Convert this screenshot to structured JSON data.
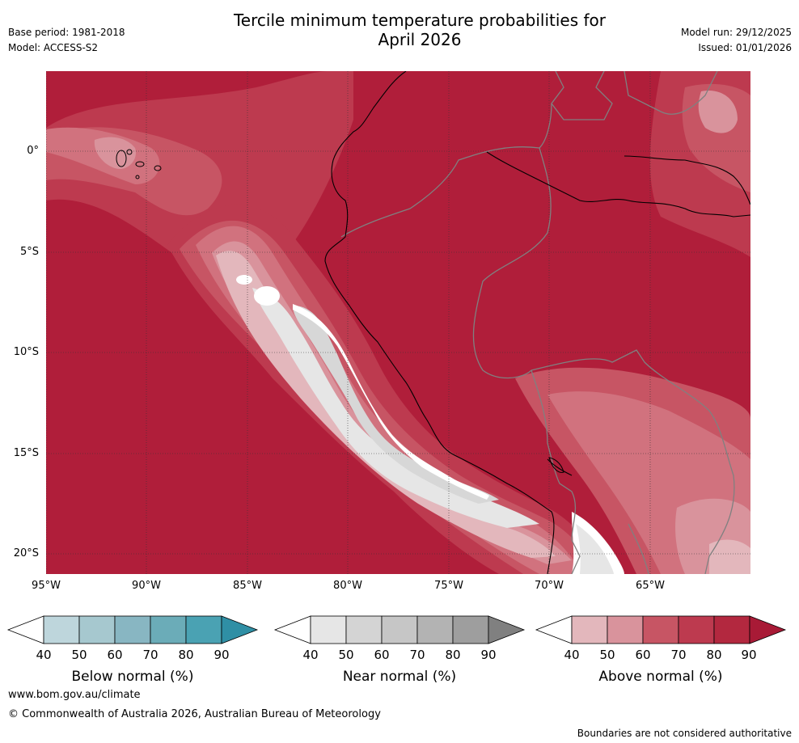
{
  "header": {
    "title_line1": "Tercile minimum temperature probabilities for",
    "title_line2": "April 2026",
    "base_period": "Base period: 1981-2018",
    "model": "Model: ACCESS-S2",
    "model_run": "Model run: 29/12/2025",
    "issued": "Issued: 01/01/2026"
  },
  "map": {
    "lat_labels": [
      "0°",
      "5°S",
      "10°S",
      "15°S",
      "20°S"
    ],
    "lon_labels": [
      "95°W",
      "90°W",
      "85°W",
      "80°W",
      "75°W",
      "70°W",
      "65°W"
    ],
    "colors": {
      "above_90": "#b01e3a",
      "above_80": "#bd3a4f",
      "above_70": "#c75564",
      "above_60": "#d1727e",
      "above_50": "#d9939c",
      "above_40": "#e3b7bc",
      "near_50": "#d7d7d7",
      "near_40": "#e6e6e6",
      "white": "#ffffff",
      "coast": "#000000",
      "border": "#808080"
    }
  },
  "legends": [
    {
      "label": "Below normal (%)",
      "ticks": [
        "40",
        "50",
        "60",
        "70",
        "80",
        "90"
      ],
      "colors": [
        "#ffffff",
        "#bed6dc",
        "#a6c8cf",
        "#88b6c2",
        "#6bacb8",
        "#4aa2b3",
        "#2f8fa5"
      ]
    },
    {
      "label": "Near normal (%)",
      "ticks": [
        "40",
        "50",
        "60",
        "70",
        "80",
        "90"
      ],
      "colors": [
        "#ffffff",
        "#e6e6e6",
        "#d4d4d4",
        "#c6c6c6",
        "#b3b3b3",
        "#9e9e9e",
        "#808080"
      ]
    },
    {
      "label": "Above normal (%)",
      "ticks": [
        "40",
        "50",
        "60",
        "70",
        "80",
        "90"
      ],
      "colors": [
        "#ffffff",
        "#e3b7bc",
        "#d9939c",
        "#c75564",
        "#bd3a4f",
        "#b3283f",
        "#a81a36"
      ]
    }
  ],
  "footer": {
    "website": "www.bom.gov.au/climate",
    "copyright": "© Commonwealth of Australia 2026, Australian Bureau of Meteorology",
    "disclaimer": "Boundaries are not considered authoritative"
  }
}
